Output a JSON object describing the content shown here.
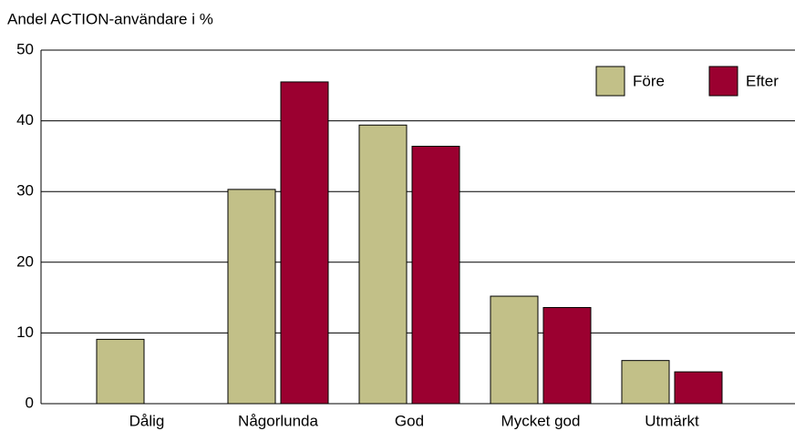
{
  "chart_data": {
    "type": "bar",
    "y_label": "Andel ACTION-användare i %",
    "categories": [
      "Dålig",
      "Någorlunda",
      "God",
      "Mycket god",
      "Utmärkt"
    ],
    "series": [
      {
        "name": "Före",
        "color": "#c2c088",
        "values": [
          9.1,
          30.3,
          39.4,
          15.2,
          6.1
        ]
      },
      {
        "name": "Efter",
        "color": "#9b0030",
        "values": [
          0,
          45.5,
          36.4,
          13.6,
          4.5
        ]
      }
    ],
    "ylim": [
      0,
      50
    ],
    "yticks": [
      0,
      10,
      20,
      30,
      40,
      50
    ],
    "grid": true,
    "legend": "upper right"
  }
}
